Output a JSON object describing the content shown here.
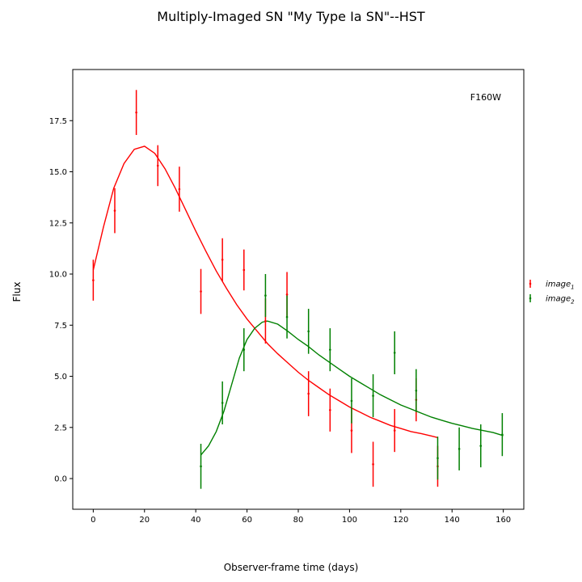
{
  "chart_data": {
    "type": "scatter",
    "title": "Multiply-Imaged SN \"My Type Ia SN\"--HST",
    "xlabel": "Observer-frame time (days)",
    "ylabel": "Flux",
    "annotation": "F160W",
    "xlim": [
      -8,
      168
    ],
    "ylim": [
      -1.5,
      20
    ],
    "xticks": [
      0,
      20,
      40,
      60,
      80,
      100,
      120,
      140,
      160
    ],
    "yticks": [
      0.0,
      2.5,
      5.0,
      7.5,
      10.0,
      12.5,
      15.0,
      17.5
    ],
    "xtick_labels": [
      "0",
      "20",
      "40",
      "60",
      "80",
      "100",
      "120",
      "140",
      "160"
    ],
    "ytick_labels": [
      "0.0",
      "2.5",
      "5.0",
      "7.5",
      "10.0",
      "12.5",
      "15.0",
      "17.5"
    ],
    "grid": false,
    "legend_position": "right",
    "series": [
      {
        "name": "image",
        "name_sub": "1",
        "color": "#ff0000",
        "points": [
          {
            "x": 0,
            "y": 9.7,
            "err": 1.0
          },
          {
            "x": 8.4,
            "y": 13.1,
            "err": 1.1
          },
          {
            "x": 16.8,
            "y": 17.9,
            "err": 1.1
          },
          {
            "x": 25.2,
            "y": 15.3,
            "err": 1.0
          },
          {
            "x": 33.6,
            "y": 14.15,
            "err": 1.1
          },
          {
            "x": 42,
            "y": 9.15,
            "err": 1.1
          },
          {
            "x": 50.4,
            "y": 10.7,
            "err": 1.05
          },
          {
            "x": 58.8,
            "y": 10.2,
            "err": 1.0
          },
          {
            "x": 67.2,
            "y": 7.7,
            "err": 1.1
          },
          {
            "x": 75.6,
            "y": 9.0,
            "err": 1.1
          },
          {
            "x": 84,
            "y": 4.15,
            "err": 1.1
          },
          {
            "x": 92.4,
            "y": 3.35,
            "err": 1.05
          },
          {
            "x": 100.8,
            "y": 2.35,
            "err": 1.1
          },
          {
            "x": 109.2,
            "y": 0.7,
            "err": 1.1
          },
          {
            "x": 117.6,
            "y": 2.35,
            "err": 1.05
          },
          {
            "x": 126,
            "y": 3.85,
            "err": 1.05
          },
          {
            "x": 134.4,
            "y": 0.6,
            "err": 1.0
          }
        ],
        "curve": [
          [
            0,
            10.2
          ],
          [
            4,
            12.3
          ],
          [
            8,
            14.2
          ],
          [
            12,
            15.4
          ],
          [
            16,
            16.1
          ],
          [
            20,
            16.25
          ],
          [
            24,
            15.9
          ],
          [
            28,
            15.15
          ],
          [
            32,
            14.2
          ],
          [
            36,
            13.15
          ],
          [
            40,
            12.1
          ],
          [
            44,
            11.1
          ],
          [
            48,
            10.15
          ],
          [
            52,
            9.3
          ],
          [
            56,
            8.5
          ],
          [
            60,
            7.8
          ],
          [
            64,
            7.2
          ],
          [
            68,
            6.6
          ],
          [
            72,
            6.1
          ],
          [
            76,
            5.65
          ],
          [
            80,
            5.2
          ],
          [
            84,
            4.8
          ],
          [
            88,
            4.45
          ],
          [
            92,
            4.1
          ],
          [
            96,
            3.8
          ],
          [
            100,
            3.5
          ],
          [
            104,
            3.25
          ],
          [
            108,
            3.0
          ],
          [
            112,
            2.8
          ],
          [
            116,
            2.6
          ],
          [
            120,
            2.45
          ],
          [
            124,
            2.3
          ],
          [
            128,
            2.2
          ],
          [
            132,
            2.08
          ],
          [
            134.5,
            2.0
          ]
        ]
      },
      {
        "name": "image",
        "name_sub": "2",
        "color": "#008000",
        "points": [
          {
            "x": 42,
            "y": 0.6,
            "err": 1.1
          },
          {
            "x": 50.4,
            "y": 3.7,
            "err": 1.05
          },
          {
            "x": 58.8,
            "y": 6.3,
            "err": 1.05
          },
          {
            "x": 67.2,
            "y": 8.95,
            "err": 1.05
          },
          {
            "x": 75.6,
            "y": 7.9,
            "err": 1.05
          },
          {
            "x": 84,
            "y": 7.2,
            "err": 1.1
          },
          {
            "x": 92.4,
            "y": 6.3,
            "err": 1.05
          },
          {
            "x": 100.8,
            "y": 3.8,
            "err": 1.1
          },
          {
            "x": 109.2,
            "y": 4.05,
            "err": 1.05
          },
          {
            "x": 117.6,
            "y": 6.15,
            "err": 1.05
          },
          {
            "x": 126,
            "y": 4.3,
            "err": 1.05
          },
          {
            "x": 134.4,
            "y": 1.0,
            "err": 1.05
          },
          {
            "x": 142.8,
            "y": 1.45,
            "err": 1.05
          },
          {
            "x": 151.2,
            "y": 1.6,
            "err": 1.05
          },
          {
            "x": 159.6,
            "y": 2.15,
            "err": 1.05
          }
        ],
        "curve": [
          [
            42,
            1.15
          ],
          [
            45,
            1.6
          ],
          [
            48,
            2.3
          ],
          [
            51,
            3.3
          ],
          [
            54,
            4.6
          ],
          [
            57,
            5.9
          ],
          [
            60,
            6.8
          ],
          [
            63,
            7.35
          ],
          [
            66,
            7.65
          ],
          [
            68,
            7.7
          ],
          [
            72,
            7.55
          ],
          [
            76,
            7.2
          ],
          [
            80,
            6.8
          ],
          [
            84,
            6.45
          ],
          [
            88,
            6.05
          ],
          [
            92,
            5.7
          ],
          [
            96,
            5.35
          ],
          [
            100,
            5.0
          ],
          [
            104,
            4.7
          ],
          [
            108,
            4.4
          ],
          [
            112,
            4.1
          ],
          [
            116,
            3.85
          ],
          [
            120,
            3.6
          ],
          [
            124,
            3.4
          ],
          [
            128,
            3.2
          ],
          [
            132,
            3.0
          ],
          [
            136,
            2.85
          ],
          [
            140,
            2.7
          ],
          [
            144,
            2.58
          ],
          [
            148,
            2.45
          ],
          [
            152,
            2.35
          ],
          [
            156,
            2.25
          ],
          [
            160,
            2.1
          ]
        ]
      }
    ]
  }
}
